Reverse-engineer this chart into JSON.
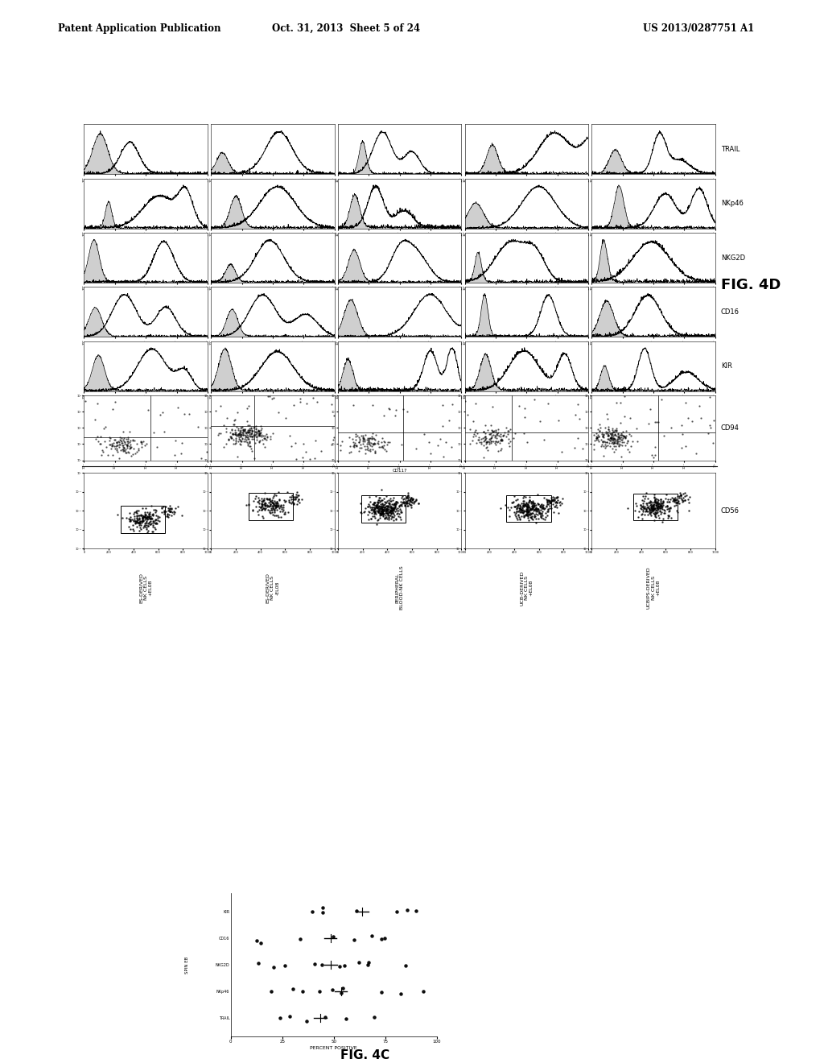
{
  "page_title_left": "Patent Application Publication",
  "page_title_center": "Oct. 31, 2013  Sheet 5 of 24",
  "page_title_right": "US 2013/0287751 A1",
  "fig4d_label": "FIG. 4D",
  "row_labels": [
    "TRAIL",
    "NKp46",
    "NKG2D",
    "CD16",
    "KIR",
    "CD94"
  ],
  "row_label_cd56": "CD56",
  "col_labels": [
    "ES-DERIVED\nNK CELLS\n+EL08",
    "ES-DERIVED\nNK CELLS\n-EL08",
    "PERIPHERAL\nBLOOD-NK CELLS",
    "UCB-DERIVED\nNK CELLS\n+EL08",
    "UCBIPS-DERIVED\nNK CELLS\n+EL08"
  ],
  "cd117_label": "CD117",
  "fig4c_label": "FIG. 4C",
  "spin_eb_label": "SPIN EB",
  "percent_positive_label": "PERCENT POSITIVE",
  "background_color": "#ffffff",
  "text_color": "#000000"
}
